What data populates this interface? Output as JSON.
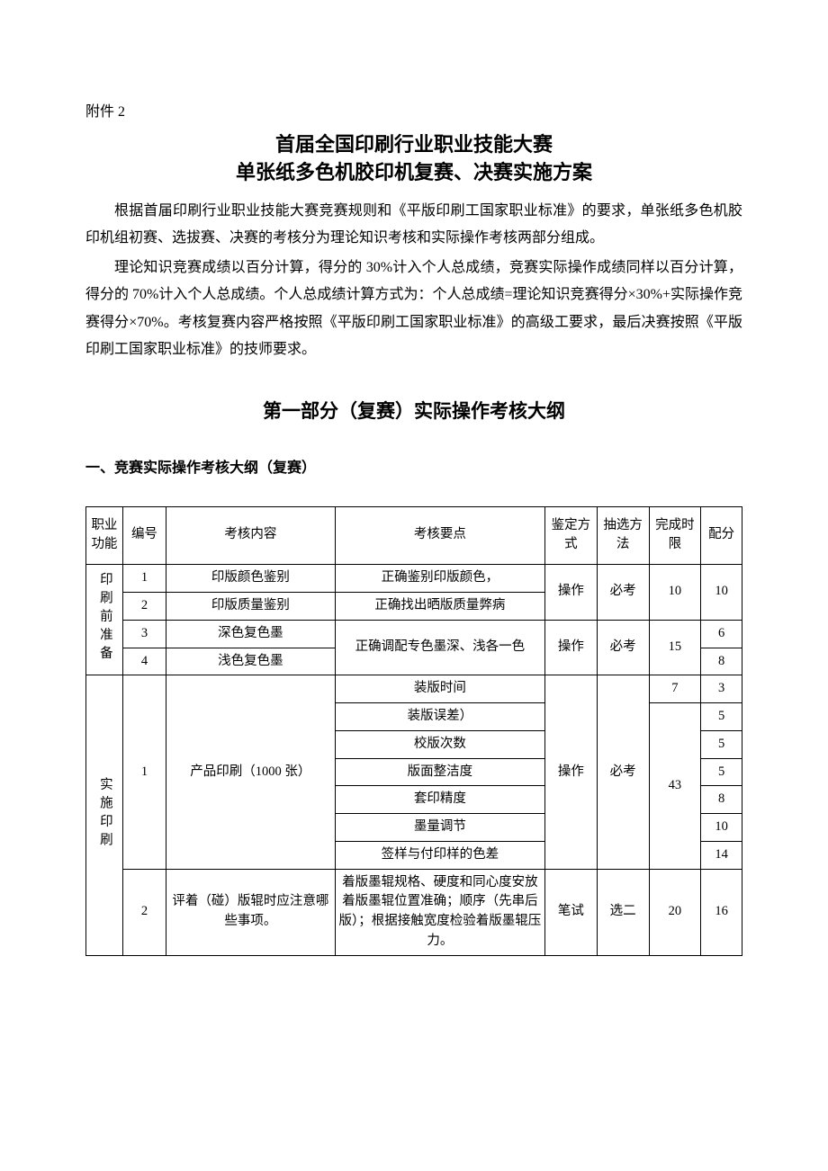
{
  "attachment_label": "附件 2",
  "title_line1": "首届全国印刷行业职业技能大赛",
  "title_line2": "单张纸多色机胶印机复赛、决赛实施方案",
  "para1": "根据首届印刷行业职业技能大赛竞赛规则和《平版印刷工国家职业标准》的要求，单张纸多色机胶印机组初赛、选拔赛、决赛的考核分为理论知识考核和实际操作考核两部分组成。",
  "para2": "理论知识竞赛成绩以百分计算，得分的 30%计入个人总成绩，竞赛实际操作成绩同样以百分计算，得分的 70%计入个人总成绩。个人总成绩计算方式为：个人总成绩=理论知识竞赛得分×30%+实际操作竞赛得分×70%。考核复赛内容严格按照《平版印刷工国家职业标准》的高级工要求，最后决赛按照《平版印刷工国家职业标准》的技师要求。",
  "section1_title": "第一部分（复赛）实际操作考核大纲",
  "sub_heading": "一、竞赛实际操作考核大纲（复赛）",
  "headers": {
    "func": "职业功能",
    "num": "编号",
    "content": "考核内容",
    "point": "考核要点",
    "mode": "鉴定方式",
    "sel": "抽选方法",
    "time": "完成时限",
    "score": "配分"
  },
  "group1": {
    "func": "印刷前准备",
    "r1": {
      "num": "1",
      "content": "印版颜色鉴别",
      "point": "正确鉴别印版颜色，"
    },
    "r2": {
      "num": "2",
      "content": "印版质量鉴别",
      "point": "正确找出晒版质量弊病"
    },
    "mode12": "操作",
    "sel12": "必考",
    "time12": "10",
    "score12": "10",
    "r3": {
      "num": "3",
      "content": "深色复色墨",
      "score": "6"
    },
    "r4": {
      "num": "4",
      "content": "浅色复色墨",
      "score": "8"
    },
    "point34": "正确调配专色墨深、浅各一色",
    "mode34": "操作",
    "sel34": "必考",
    "time34": "15"
  },
  "group2": {
    "func": "实施印刷",
    "r1": {
      "num": "1",
      "content": "产品印刷（1000 张）",
      "mode": "操作",
      "sel": "必考",
      "points": [
        {
          "pt": "装版时间",
          "time": "7",
          "score": "3"
        },
        {
          "pt": "装版误差）",
          "score": "5"
        },
        {
          "pt": "校版次数",
          "score": "5"
        },
        {
          "pt": "版面整洁度",
          "score": "5"
        },
        {
          "pt": "套印精度",
          "score": "8"
        },
        {
          "pt": "墨量调节",
          "score": "10"
        },
        {
          "pt": "签样与付印样的色差",
          "score": "14"
        }
      ],
      "time_rest": "43"
    },
    "r2": {
      "num": "2",
      "content": "评着（碰）版辊时应注意哪些事项。",
      "point": "着版墨辊规格、硬度和同心度安放着版墨辊位置准确；顺序（先串后版）；根据接触宽度检验着版墨辊压力。",
      "mode": "笔试",
      "sel": "选二",
      "time": "20",
      "score": "16"
    }
  }
}
